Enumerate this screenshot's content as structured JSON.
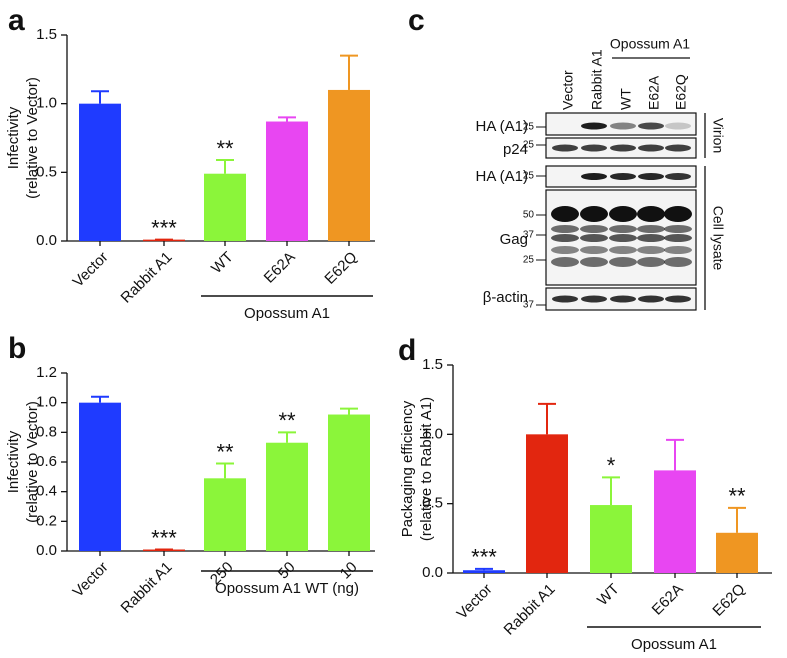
{
  "chart_data": [
    {
      "type": "bar",
      "panel": "a",
      "ylabel": [
        "Infectivity",
        "(relative to Vector)"
      ],
      "categories": [
        "Vector",
        "Rabbit A1",
        "WT",
        "E62A",
        "E62Q"
      ],
      "values": [
        1.0,
        0.01,
        0.49,
        0.87,
        1.1
      ],
      "errors": [
        0.09,
        0,
        0.1,
        0.03,
        0.25
      ],
      "colors": [
        "#1f3bff",
        "#e2260f",
        "#8bf53a",
        "#e846f2",
        "#ef9622"
      ],
      "significance": [
        null,
        "***",
        "**",
        null,
        null
      ],
      "group": {
        "label": "Opossum A1",
        "from": 2,
        "to": 4
      },
      "ylim": [
        0,
        1.5
      ],
      "yticks": [
        {
          "value": 0,
          "label": "0.0"
        },
        {
          "value": 0.5,
          "label": "0.5"
        },
        {
          "value": 1,
          "label": "1.0"
        },
        {
          "value": 1.5,
          "label": "1.5"
        }
      ]
    },
    {
      "type": "bar",
      "panel": "b",
      "ylabel": [
        "Infectivity",
        "(relative to Vector)"
      ],
      "categories": [
        "Vector",
        "Rabbit A1",
        "250",
        "50",
        "10"
      ],
      "values": [
        1.0,
        0.01,
        0.49,
        0.73,
        0.92
      ],
      "errors": [
        0.04,
        0,
        0.1,
        0.07,
        0.04
      ],
      "colors": [
        "#1f3bff",
        "#e2260f",
        "#8bf53a",
        "#8bf53a",
        "#8bf53a"
      ],
      "significance": [
        null,
        "***",
        "**",
        "**",
        null
      ],
      "group": {
        "label": "Opossum A1 WT (ng)",
        "from": 2,
        "to": 4
      },
      "ylim": [
        0,
        1.2
      ],
      "yticks": [
        {
          "value": 0,
          "label": "0.0"
        },
        {
          "value": 0.2,
          "label": "0.2"
        },
        {
          "value": 0.4,
          "label": "0.4"
        },
        {
          "value": 0.6,
          "label": "0.6"
        },
        {
          "value": 0.8,
          "label": "0.8"
        },
        {
          "value": 1,
          "label": "1.0"
        },
        {
          "value": 1.2,
          "label": "1.2"
        }
      ]
    },
    {
      "type": "bar",
      "panel": "d",
      "ylabel": [
        "Packaging efficiency",
        "(relative to Rabbit A1)"
      ],
      "categories": [
        "Vector",
        "Rabbit A1",
        "WT",
        "E62A",
        "E62Q"
      ],
      "values": [
        0.02,
        1.0,
        0.49,
        0.74,
        0.29
      ],
      "errors": [
        0.01,
        0.22,
        0.2,
        0.22,
        0.18
      ],
      "colors": [
        "#1f3bff",
        "#e2260f",
        "#8bf53a",
        "#e846f2",
        "#ef9622"
      ],
      "significance": [
        "***",
        null,
        "*",
        null,
        "**"
      ],
      "group": {
        "label": "Opossum A1",
        "from": 2,
        "to": 4
      },
      "ylim": [
        0,
        1.5
      ],
      "yticks": [
        {
          "value": 0,
          "label": "0.0"
        },
        {
          "value": 0.5,
          "label": "0.5"
        },
        {
          "value": 1,
          "label": "1.0"
        },
        {
          "value": 1.5,
          "label": "1.5"
        }
      ]
    }
  ],
  "blot": {
    "panel": "c",
    "lanes": [
      "Vector",
      "Rabbit A1",
      "WT",
      "E62A",
      "E62Q"
    ],
    "group": {
      "label": "Opossum A1",
      "from": 2,
      "to": 4
    },
    "rows": [
      {
        "label": "HA (A1)",
        "markers": [
          "25"
        ]
      },
      {
        "label": "p24",
        "markers": [
          "25"
        ]
      },
      {
        "label": "HA (A1)",
        "markers": [
          "25"
        ]
      },
      {
        "label": "Gag",
        "markers": [
          "50",
          "37",
          "25"
        ]
      },
      {
        "label": "β-actin",
        "markers": [
          "37"
        ]
      }
    ],
    "sections": [
      "Virion",
      "Cell lysate"
    ]
  }
}
